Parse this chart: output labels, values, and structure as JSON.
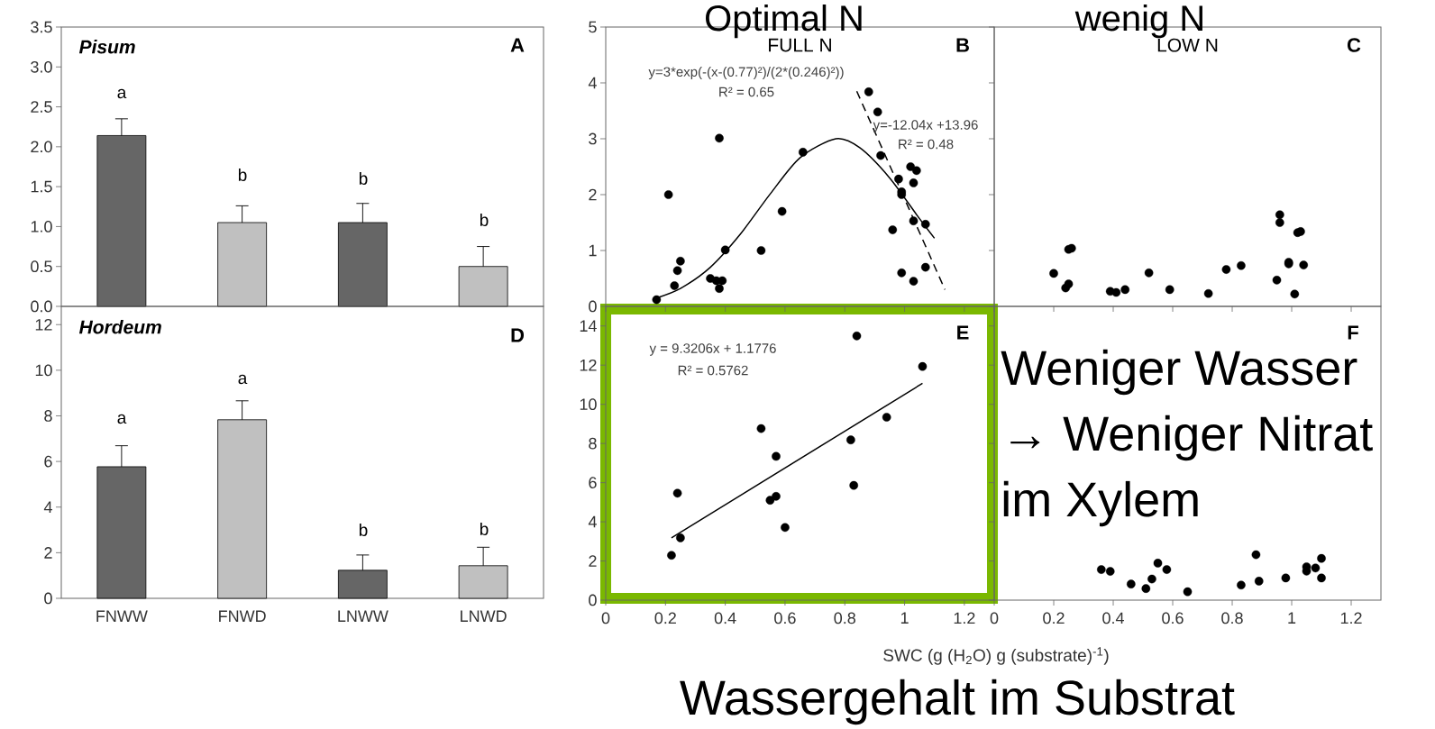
{
  "chart_data": [
    {
      "type": "bar",
      "title": "Pisum",
      "categories": [
        null,
        null,
        null,
        null
      ],
      "values": [
        2.14,
        1.05,
        1.05,
        0.5
      ],
      "errors": [
        [
          2.14,
          2.35
        ],
        [
          1.05,
          1.26
        ],
        [
          1.05,
          1.29
        ],
        [
          0.5,
          0.75
        ]
      ],
      "colors": [
        "#666666",
        "#c0c0c0",
        "#666666",
        "#c0c0c0"
      ],
      "ylim": [
        0,
        3.5
      ],
      "yticks": [
        {
          "value": 0,
          "label": "0.0"
        },
        {
          "value": 0.5,
          "label": "0.5"
        },
        {
          "value": 1,
          "label": "1.0"
        },
        {
          "value": 1.5,
          "label": "1.5"
        },
        {
          "value": 2,
          "label": "2.0"
        },
        {
          "value": 2.5,
          "label": "2.5"
        },
        {
          "value": 3,
          "label": "3.0"
        },
        {
          "value": 3.5,
          "label": "3.5"
        }
      ],
      "tick_labels": "y",
      "annotations": [
        "A",
        "a",
        "b",
        "b",
        "b"
      ]
    },
    {
      "type": "scatter",
      "title": "FULL N",
      "xlim": [
        0,
        1.3
      ],
      "xticks": [
        0,
        0.2,
        0.4,
        0.6,
        0.8,
        1,
        1.2
      ],
      "ylim": [
        0,
        5
      ],
      "yticks": [
        0,
        1,
        2,
        3,
        4,
        5
      ],
      "tick_labels": "y",
      "marker": "circle",
      "series": [
        {
          "type": "scatter",
          "color": "#000000",
          "x": [
            0.17,
            0.21,
            0.23,
            0.24,
            0.25,
            0.35,
            0.38,
            0.37,
            0.39,
            0.38,
            0.4,
            0.52,
            0.59,
            0.66,
            0.88,
            0.91,
            0.92,
            0.96,
            0.98,
            0.99,
            0.99,
            0.99,
            1.02,
            1.03,
            1.03,
            1.03,
            1.04,
            1.07,
            1.07
          ],
          "values": [
            0.12,
            2.0,
            0.37,
            0.64,
            0.81,
            0.5,
            3.01,
            0.46,
            0.46,
            0.32,
            1.01,
            1.0,
            1.7,
            2.76,
            3.84,
            3.48,
            2.7,
            1.37,
            2.28,
            2.0,
            2.05,
            0.6,
            2.5,
            2.21,
            1.53,
            0.45,
            2.43,
            1.47,
            0.7
          ]
        },
        {
          "type": "line",
          "marker": "none",
          "color": "#000000",
          "x": [
            0.17,
            0.25,
            0.35,
            0.45,
            0.55,
            0.65,
            0.77,
            0.85,
            0.95,
            1.05,
            1.1
          ],
          "values": [
            0.15,
            0.32,
            0.7,
            1.29,
            2.01,
            2.66,
            3.0,
            2.84,
            2.3,
            1.57,
            1.22
          ]
        },
        {
          "type": "line",
          "marker": "none",
          "color": "#000000",
          "line_style": "dashed",
          "x": [
            0.84,
            1.135
          ],
          "values": [
            3.85,
            0.3
          ]
        }
      ],
      "annotations": [
        "B",
        "Optimal N",
        "y=3*exp(-(x-(0.77)²)/(2*(0.246)²))",
        "R² = 0.65",
        "y=-12.04x +13.96",
        "R² = 0.48"
      ]
    },
    {
      "type": "scatter",
      "title": "LOW N",
      "xlim": [
        0,
        1.3
      ],
      "xticks": [
        0,
        0.2,
        0.4,
        0.6,
        0.8,
        1,
        1.2
      ],
      "ylim": [
        0,
        5
      ],
      "yticks": [
        0,
        1,
        2,
        3,
        4,
        5
      ],
      "tick_labels": false,
      "marker": "circle",
      "series": [
        {
          "type": "scatter",
          "color": "#000000",
          "x": [
            0.2,
            0.24,
            0.25,
            0.25,
            0.26,
            0.39,
            0.41,
            0.44,
            0.52,
            0.59,
            0.72,
            0.78,
            0.83,
            0.95,
            0.96,
            0.96,
            0.99,
            0.99,
            1.01,
            1.02,
            1.03,
            1.04
          ],
          "values": [
            0.59,
            0.33,
            0.4,
            1.02,
            1.04,
            0.27,
            0.25,
            0.3,
            0.6,
            0.3,
            0.23,
            0.66,
            0.73,
            0.47,
            1.64,
            1.5,
            0.79,
            0.76,
            0.22,
            1.32,
            1.34,
            0.74
          ]
        }
      ],
      "annotations": [
        "C",
        "wenig N"
      ]
    },
    {
      "type": "bar",
      "title": "Hordeum",
      "categories": [
        "FNWW",
        "FNWD",
        "LNWW",
        "LNWD"
      ],
      "values": [
        5.77,
        7.83,
        1.23,
        1.43
      ],
      "errors": [
        [
          5.77,
          6.69
        ],
        [
          7.83,
          8.66
        ],
        [
          1.23,
          1.9
        ],
        [
          1.43,
          2.24
        ]
      ],
      "colors": [
        "#666666",
        "#c0c0c0",
        "#666666",
        "#c0c0c0"
      ],
      "ylim": [
        0,
        12.8
      ],
      "yticks": [
        0,
        2,
        4,
        6,
        8,
        10,
        12
      ],
      "annotations": [
        "D",
        "a",
        "a",
        "b",
        "b"
      ]
    },
    {
      "type": "scatter",
      "xlabel": "SWC (g (H$_{2}$O) g (substrate)$^{-1}$)",
      "xlim": [
        0,
        1.3
      ],
      "xticks": [
        0,
        0.2,
        0.4,
        0.6,
        0.8,
        1,
        1.2
      ],
      "ylim": [
        0,
        15
      ],
      "yticks": [
        0,
        2,
        4,
        6,
        8,
        10,
        12,
        14
      ],
      "marker": "circle",
      "series": [
        {
          "type": "scatter",
          "color": "#000000",
          "x": [
            0.22,
            0.24,
            0.25,
            0.52,
            0.55,
            0.57,
            0.57,
            0.6,
            0.82,
            0.83,
            0.84,
            0.94,
            1.06
          ],
          "values": [
            2.29,
            5.46,
            3.18,
            8.76,
            5.1,
            5.3,
            7.34,
            3.71,
            8.18,
            5.86,
            13.49,
            9.34,
            11.93
          ]
        },
        {
          "type": "line",
          "marker": "none",
          "color": "#000000",
          "x": [
            0.22,
            1.06
          ],
          "values": [
            3.18,
            11.07
          ]
        }
      ],
      "annotations": [
        "E",
        "Wassergehalt im Substrat",
        "y = 9.3206x + 1.1776",
        "R² = 0.5762"
      ]
    },
    {
      "type": "scatter",
      "xlim": [
        0,
        1.3
      ],
      "xticks": [
        0,
        0.2,
        0.4,
        0.6,
        0.8,
        1,
        1.2
      ],
      "ylim": [
        0,
        15
      ],
      "yticks": [
        0,
        2,
        4,
        6,
        8,
        10,
        12,
        14
      ],
      "tick_labels": "x",
      "marker": "circle",
      "series": [
        {
          "type": "scatter",
          "color": "#000000",
          "x": [
            0.36,
            0.39,
            0.46,
            0.51,
            0.53,
            0.55,
            0.58,
            0.65,
            0.83,
            0.88,
            0.89,
            0.98,
            1.05,
            1.05,
            1.08,
            1.1,
            1.1
          ],
          "values": [
            1.56,
            1.47,
            0.82,
            0.59,
            1.08,
            1.89,
            1.56,
            0.43,
            0.77,
            2.32,
            0.97,
            1.13,
            1.48,
            1.7,
            1.64,
            1.13,
            2.13
          ]
        }
      ],
      "annotations": [
        "F",
        "Weniger Wasser",
        "→ Weniger Nitrat",
        "im Xylem"
      ]
    }
  ]
}
